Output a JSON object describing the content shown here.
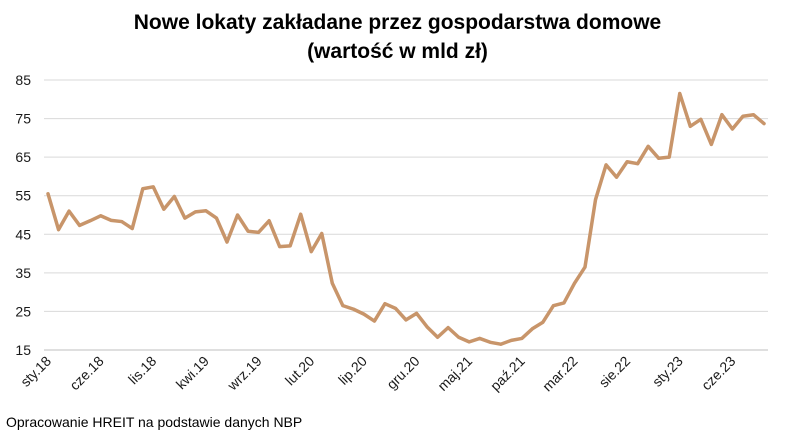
{
  "chart_data": {
    "type": "line",
    "title": "Nowe lokaty zakładane przez gospodarstwa domowe",
    "subtitle": "(wartość w mld zł)",
    "source": "Opracowanie HREIT na podstawie danych NBP",
    "ylim": [
      15,
      85
    ],
    "yticks": [
      15,
      25,
      35,
      45,
      55,
      65,
      75,
      85
    ],
    "grid": true,
    "x_tick_labels": [
      {
        "index": 0,
        "label": "sty.18"
      },
      {
        "index": 5,
        "label": "cze.18"
      },
      {
        "index": 10,
        "label": "lis.18"
      },
      {
        "index": 15,
        "label": "kwi.19"
      },
      {
        "index": 20,
        "label": "wrz.19"
      },
      {
        "index": 25,
        "label": "lut.20"
      },
      {
        "index": 30,
        "label": "lip.20"
      },
      {
        "index": 35,
        "label": "gru.20"
      },
      {
        "index": 40,
        "label": "maj.21"
      },
      {
        "index": 45,
        "label": "paź.21"
      },
      {
        "index": 50,
        "label": "mar.22"
      },
      {
        "index": 55,
        "label": "sie.22"
      },
      {
        "index": 60,
        "label": "sty.23"
      },
      {
        "index": 65,
        "label": "cze.23"
      }
    ],
    "series": [
      {
        "color": "#c8956a",
        "values": [
          55.5,
          46.2,
          51.0,
          47.3,
          48.5,
          49.8,
          48.6,
          48.3,
          46.5,
          56.8,
          57.3,
          51.5,
          54.8,
          49.2,
          50.8,
          51.1,
          49.2,
          43.0,
          50.0,
          45.8,
          45.5,
          48.5,
          41.8,
          42.0,
          50.2,
          40.5,
          45.2,
          32.3,
          26.5,
          25.6,
          24.3,
          22.5,
          27.0,
          25.8,
          22.8,
          24.5,
          21.0,
          18.3,
          20.8,
          18.3,
          17.1,
          18.0,
          17.0,
          16.5,
          17.5,
          18.0,
          20.5,
          22.2,
          26.5,
          27.2,
          32.3,
          36.5,
          54.0,
          63.0,
          59.8,
          63.8,
          63.3,
          67.8,
          64.7,
          65.0,
          81.5,
          73.0,
          74.8,
          68.3,
          76.0,
          72.3,
          75.6,
          76.0,
          73.7
        ]
      }
    ]
  }
}
